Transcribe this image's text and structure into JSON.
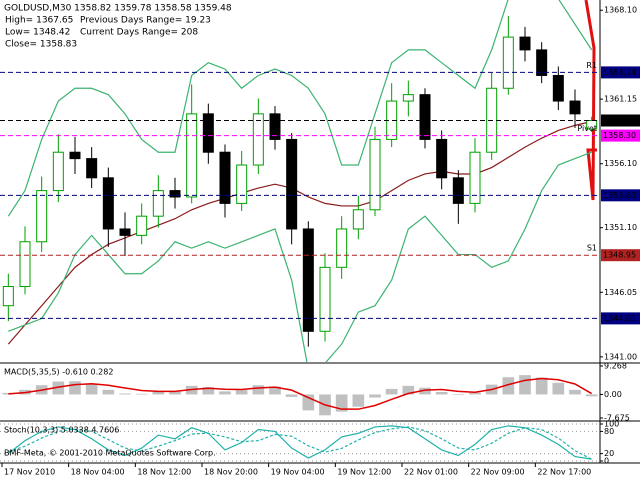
{
  "chart_data": [
    {
      "type": "candlestick",
      "title": "GOLDUSD,M30  1358.82 1359.78 1358.58 1359.48",
      "info": [
        "High= 1367.65",
        "Previous Days Range= 19.23",
        "Low= 1348.42",
        "Current Days Range= 208",
        "Close= 1358.83"
      ],
      "categories": [
        "17 Nov 2010",
        null,
        null,
        null,
        "18 Nov 04:00",
        null,
        null,
        null,
        "18 Nov 12:00",
        null,
        null,
        null,
        "18 Nov 20:00",
        null,
        null,
        null,
        "19 Nov 04:00",
        null,
        null,
        null,
        "19 Nov 12:00",
        null,
        null,
        null,
        "22 Nov 01:00",
        null,
        null,
        null,
        "22 Nov 09:00",
        null,
        null,
        null,
        "22 Nov 17:00",
        null,
        null,
        null
      ],
      "open": [
        1345.0,
        1346.5,
        1350.0,
        1354.0,
        1357.0,
        1356.5,
        1355.0,
        1351.0,
        1350.5,
        1352.0,
        1354.0,
        1353.5,
        1360.0,
        1357.0,
        1353.0,
        1356.0,
        1360.0,
        1358.0,
        1351.0,
        1343.0,
        1348.0,
        1351.0,
        1352.5,
        1358.0,
        1361.0,
        1361.5,
        1358.0,
        1355.0,
        1353.0,
        1357.0,
        1362.0,
        1366.0,
        1365.0,
        1363.0,
        1361.0,
        1358.82
      ],
      "high": [
        1347.5,
        1351.2,
        1355.1,
        1358.4,
        1358.2,
        1357.4,
        1355.8,
        1352.3,
        1353.0,
        1355.2,
        1355.0,
        1362.3,
        1360.8,
        1357.6,
        1357.1,
        1361.2,
        1360.6,
        1358.5,
        1351.6,
        1349.1,
        1352.0,
        1353.6,
        1359.0,
        1362.4,
        1362.6,
        1362.0,
        1358.7,
        1355.6,
        1358.1,
        1363.2,
        1367.65,
        1366.8,
        1365.6,
        1363.7,
        1361.9,
        1359.78
      ],
      "low": [
        1343.8,
        1345.9,
        1349.2,
        1353.1,
        1355.3,
        1354.2,
        1349.6,
        1348.9,
        1349.8,
        1351.1,
        1352.6,
        1353.0,
        1356.1,
        1351.9,
        1352.4,
        1355.3,
        1357.2,
        1349.8,
        1341.8,
        1342.2,
        1347.1,
        1350.2,
        1352.0,
        1357.4,
        1359.8,
        1357.3,
        1354.1,
        1351.4,
        1352.3,
        1356.4,
        1361.5,
        1364.1,
        1362.4,
        1360.3,
        1358.9,
        1358.58
      ],
      "close": [
        1346.5,
        1350.0,
        1354.0,
        1357.0,
        1356.5,
        1355.0,
        1351.0,
        1350.5,
        1352.0,
        1354.0,
        1353.5,
        1360.0,
        1357.0,
        1353.0,
        1356.0,
        1360.0,
        1358.0,
        1351.0,
        1343.0,
        1348.0,
        1351.0,
        1352.5,
        1358.0,
        1361.0,
        1361.5,
        1358.0,
        1355.0,
        1353.0,
        1357.0,
        1362.0,
        1366.0,
        1365.0,
        1363.0,
        1361.0,
        1360.0,
        1359.48
      ],
      "up_color": "#00a000",
      "down_color": "#000000",
      "series": [
        {
          "color": "#8b1a1a",
          "values": [
            1342,
            1343.5,
            1345,
            1346.5,
            1348,
            1349,
            1349.8,
            1350.3,
            1350.8,
            1351.3,
            1351.8,
            1352.5,
            1353,
            1353.4,
            1353.8,
            1354.2,
            1354.5,
            1354.2,
            1353.5,
            1353,
            1352.8,
            1352.8,
            1353.2,
            1354,
            1354.8,
            1355.3,
            1355.5,
            1355.3,
            1355.3,
            1355.8,
            1356.6,
            1357.4,
            1358.1,
            1358.7,
            1359.1,
            1359.4
          ]
        },
        {
          "color": "#3cb371",
          "values": [
            1352,
            1354,
            1358,
            1361,
            1362,
            1362,
            1361.5,
            1360,
            1358,
            1357,
            1357,
            1363,
            1364,
            1363.5,
            1362,
            1363,
            1363.5,
            1363,
            1362,
            1360,
            1356,
            1356,
            1360,
            1364,
            1365,
            1365,
            1364,
            1363,
            1362,
            1365,
            1369,
            1370,
            1370,
            1369,
            1367,
            1365
          ]
        },
        {
          "color": "#3cb371",
          "values": [
            1343,
            1343.5,
            1344,
            1346,
            1349,
            1350.5,
            1349,
            1347.5,
            1347.5,
            1348.5,
            1350,
            1349.5,
            1350,
            1349.5,
            1350,
            1350.5,
            1351,
            1347,
            1340,
            1340.5,
            1342,
            1344.5,
            1345,
            1347,
            1351,
            1352,
            1350.5,
            1349,
            1349,
            1348,
            1348.5,
            1351,
            1354,
            1356,
            1356.5,
            1357
          ]
        }
      ],
      "hlines": [
        {
          "value": 1363.24,
          "label": "1363.24",
          "color": "#000080",
          "name": "R1"
        },
        {
          "value": 1359.48,
          "label": "1359.48",
          "color": "#000000"
        },
        {
          "value": 1358.3,
          "label": "1358.30",
          "color": "#ff00ff",
          "name": "Pivot"
        },
        {
          "value": 1353.63,
          "label": "1353.63",
          "color": "#000080"
        },
        {
          "value": 1348.95,
          "label": "1348.95",
          "color": "#b22222",
          "name": "S1"
        },
        {
          "value": 1344.01,
          "label": "1344.01",
          "color": "#000080"
        }
      ],
      "ylim": [
        1340.6,
        1368.9
      ],
      "yticks": [
        {
          "value": 1368.1,
          "label": "1368.10"
        },
        1361.15,
        {
          "value": 1356.1,
          "label": "1356.10"
        },
        {
          "value": 1351.1,
          "label": "1351.10"
        },
        1346.05,
        {
          "value": 1341,
          "label": "1341.00"
        }
      ]
    },
    {
      "type": "macd",
      "title": "MACD(5,35,5) -0.610 0.282",
      "series": [
        {
          "color": "#c0c0c0",
          "values": [
            0.5,
            1.5,
            3,
            4.2,
            4.3,
            3.5,
            1.5,
            0.3,
            0.2,
            0.8,
            0.9,
            2.8,
            2.4,
            1,
            1.4,
            3,
            2.6,
            -0.8,
            -5.2,
            -6.8,
            -5.6,
            -4,
            -1,
            1.8,
            2.8,
            2.2,
            0.8,
            -0.2,
            0.6,
            3.2,
            5.6,
            6.3,
            5.5,
            3.8,
            1.5,
            -0.61
          ]
        },
        {
          "color": "#e00000",
          "values": [
            0.2,
            0.6,
            1.4,
            2.4,
            3.2,
            3.5,
            3,
            2.1,
            1.3,
            1,
            1,
            1.6,
            2,
            1.7,
            1.6,
            2.1,
            2.4,
            1.4,
            -1,
            -3.4,
            -4.8,
            -4.8,
            -3.6,
            -1.6,
            0.3,
            1.4,
            1.6,
            1,
            0.7,
            1.6,
            3.2,
            4.6,
            5.2,
            4.8,
            3.4,
            0.282
          ]
        }
      ],
      "ylim": [
        -7.675,
        9.268
      ],
      "yticks": [
        9.268,
        {
          "value": 0,
          "label": "0.00"
        },
        -7.675
      ]
    },
    {
      "type": "stochastic",
      "title": "Stoch(10,3,3) 5.0338 4.7606",
      "footer": "BMF-Meta, © 2001-2010 MetaQuotes Software Corp.",
      "series": [
        {
          "color": "#20b2aa",
          "dashed": false,
          "values": [
            20,
            55,
            80,
            92,
            85,
            60,
            30,
            15,
            35,
            70,
            60,
            90,
            75,
            30,
            50,
            85,
            80,
            35,
            8,
            30,
            65,
            75,
            92,
            95,
            90,
            60,
            30,
            15,
            45,
            85,
            95,
            90,
            70,
            45,
            12,
            5.0338
          ]
        },
        {
          "color": "#20b2aa",
          "dashed": true,
          "values": [
            25,
            40,
            62,
            80,
            86,
            80,
            58,
            35,
            27,
            40,
            55,
            73,
            75,
            65,
            52,
            55,
            72,
            67,
            41,
            24,
            34,
            57,
            77,
            87,
            92,
            82,
            60,
            35,
            30,
            48,
            75,
            90,
            85,
            62,
            28,
            4.7606
          ]
        }
      ],
      "ylim": [
        0,
        100
      ],
      "yticks": [
        0,
        20,
        80,
        100
      ],
      "grid": true
    }
  ]
}
